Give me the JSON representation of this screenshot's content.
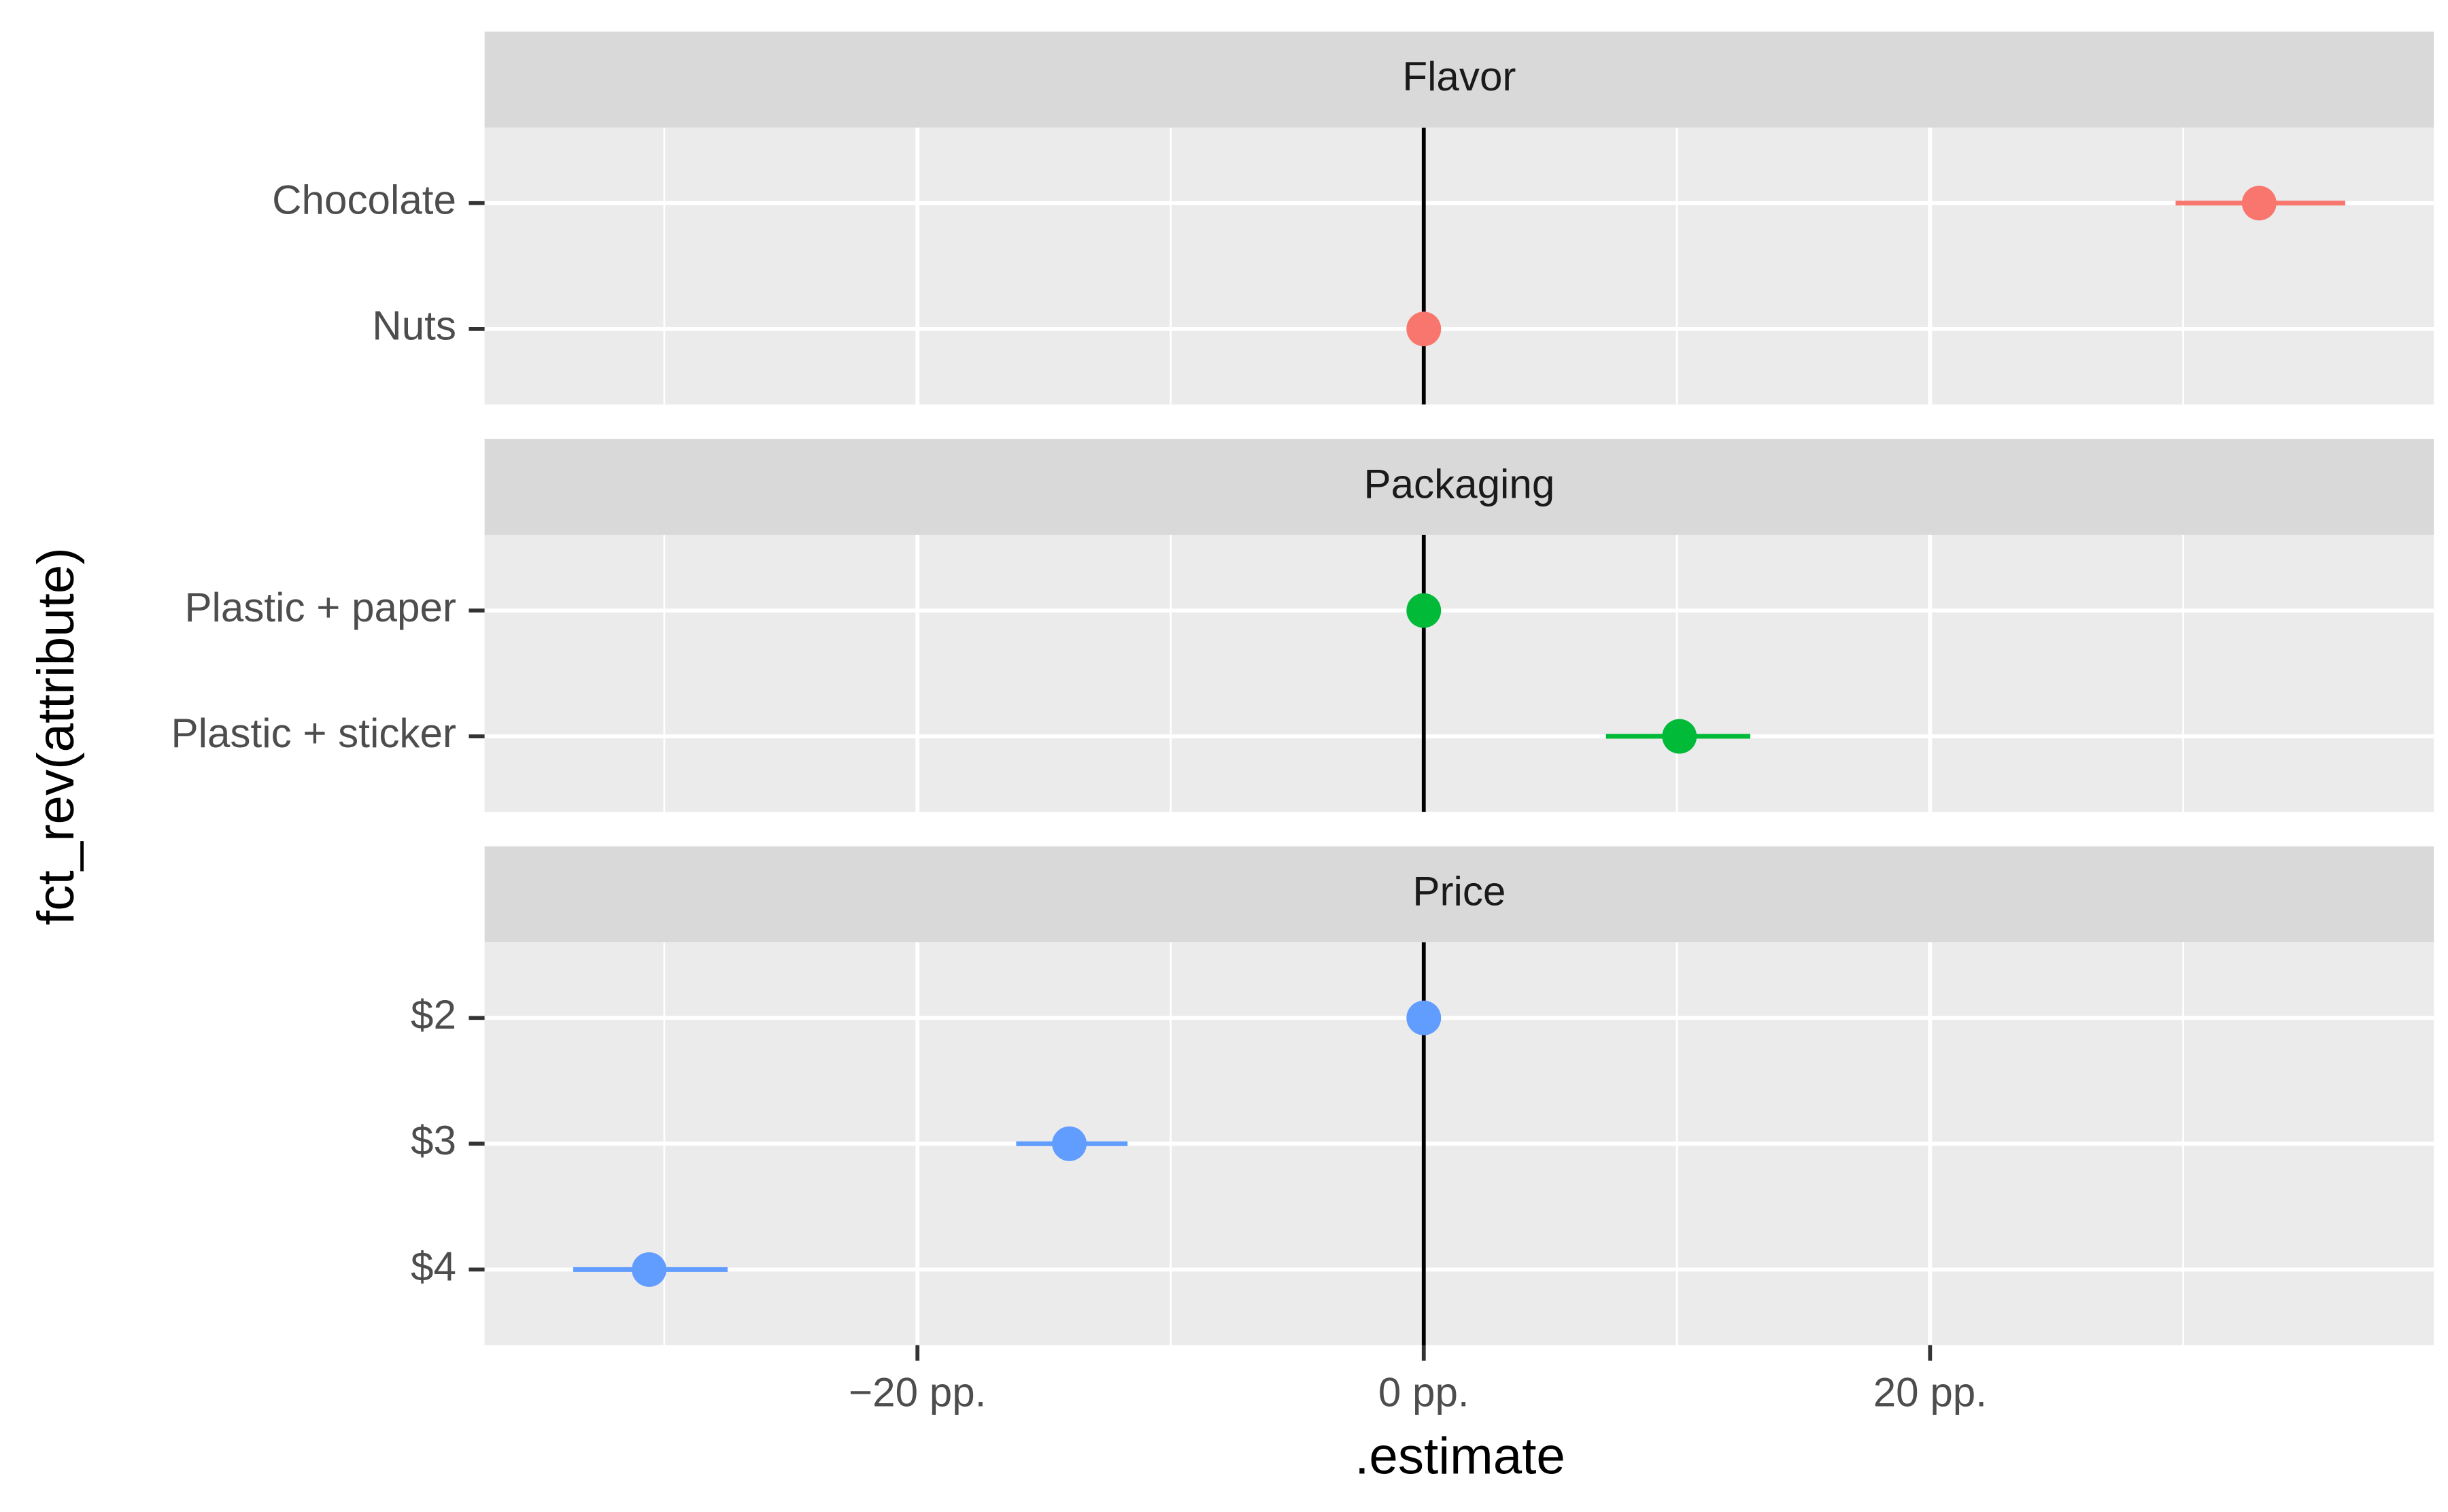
{
  "chart_data": {
    "type": "pointrange",
    "xlabel": ".estimate",
    "ylabel": "fct_rev(attribute)",
    "xlim": [
      -37.1,
      39.9
    ],
    "xticks": [
      {
        "value": -20,
        "label": "−20 pp."
      },
      {
        "value": 0,
        "label": "0 pp."
      },
      {
        "value": 20,
        "label": "20 pp."
      }
    ],
    "xminor": [
      -30,
      -10,
      10,
      30
    ],
    "vline": 0,
    "grid": true,
    "panels": [
      {
        "title": "Flavor",
        "color": "#F8766D",
        "categories": [
          "Chocolate",
          "Nuts"
        ],
        "values": [
          33.0,
          0
        ],
        "lower": [
          29.7,
          0
        ],
        "upper": [
          36.4,
          0
        ]
      },
      {
        "title": "Packaging",
        "color": "#00BA38",
        "categories": [
          "Plastic + paper",
          "Plastic + sticker"
        ],
        "values": [
          0,
          10.1
        ],
        "lower": [
          0,
          7.2
        ],
        "upper": [
          0,
          12.9
        ]
      },
      {
        "title": "Price",
        "color": "#619CFF",
        "categories": [
          "$2",
          "$3",
          "$4"
        ],
        "values": [
          0,
          -14.0,
          -30.6
        ],
        "lower": [
          0,
          -16.1,
          -33.6
        ],
        "upper": [
          0,
          -11.7,
          -27.5
        ]
      }
    ]
  }
}
